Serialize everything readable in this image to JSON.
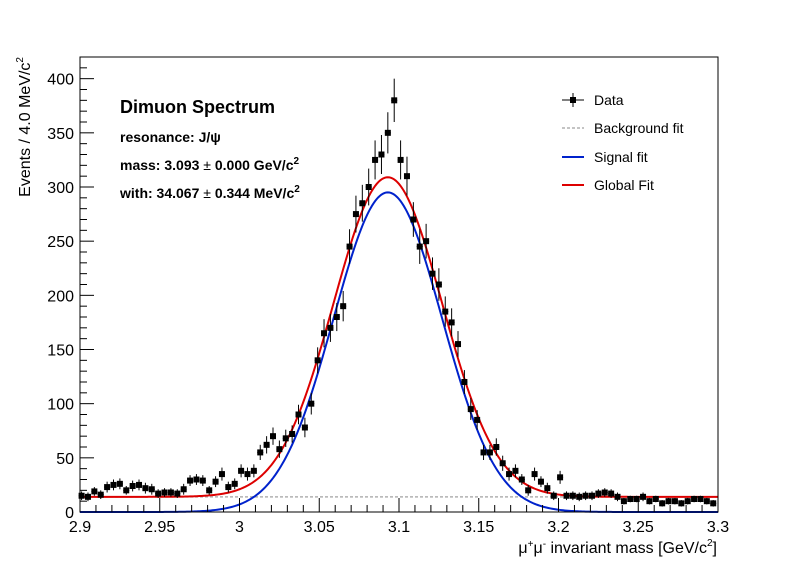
{
  "chart_data": {
    "type": "scatter",
    "title": "Dimuon Spectrum",
    "annotations": {
      "resonance_label": "resonance: J/ψ",
      "mass_prefix": "mass: 3.093 ",
      "mass_pm": "±",
      "mass_rest": " 0.000 GeV/c",
      "with_prefix": "with: 34.067 ",
      "with_pm": "±",
      "with_rest": " 0.344 MeV/c",
      "sup2": "2"
    },
    "xlabel": {
      "mu1": "μ",
      "plus": "+",
      "mu2": "μ",
      "minus": "-",
      "rest": " invariant mass [GeV/c",
      "sup": "2",
      "close": "]"
    },
    "ylabel": {
      "main": "Events / 4.0 MeV/c",
      "sup": "2"
    },
    "xlim": [
      2.9,
      3.3
    ],
    "ylim": [
      0,
      420
    ],
    "x_ticks": [
      {
        "v": 2.9,
        "label": "2.9"
      },
      {
        "v": 2.95,
        "label": "2.95"
      },
      {
        "v": 3.0,
        "label": "3"
      },
      {
        "v": 3.05,
        "label": "3.05"
      },
      {
        "v": 3.1,
        "label": "3.1"
      },
      {
        "v": 3.15,
        "label": "3.15"
      },
      {
        "v": 3.2,
        "label": "3.2"
      },
      {
        "v": 3.25,
        "label": "3.25"
      },
      {
        "v": 3.3,
        "label": "3.3"
      }
    ],
    "y_ticks": [
      {
        "v": 0,
        "label": "0"
      },
      {
        "v": 50,
        "label": "50"
      },
      {
        "v": 100,
        "label": "100"
      },
      {
        "v": 150,
        "label": "150"
      },
      {
        "v": 200,
        "label": "200"
      },
      {
        "v": 250,
        "label": "250"
      },
      {
        "v": 300,
        "label": "300"
      },
      {
        "v": 350,
        "label": "350"
      },
      {
        "v": 400,
        "label": "400"
      }
    ],
    "legend": {
      "position": "top-right",
      "entries": [
        {
          "label": "Data",
          "style": "marker",
          "color": "#000000"
        },
        {
          "label": "Background fit",
          "style": "dashed",
          "color": "#b0b0b0"
        },
        {
          "label": "Signal fit",
          "style": "line",
          "color": "#0022cc"
        },
        {
          "label": "Global Fit",
          "style": "line",
          "color": "#dd0000"
        }
      ]
    },
    "fit": {
      "mean": 3.093,
      "sigma": 0.034,
      "signal_amplitude": 295,
      "background_level": 14
    },
    "series": [
      {
        "name": "Data",
        "x": [
          2.901,
          2.905,
          2.909,
          2.913,
          2.917,
          2.921,
          2.925,
          2.929,
          2.933,
          2.937,
          2.941,
          2.945,
          2.949,
          2.953,
          2.957,
          2.961,
          2.965,
          2.969,
          2.973,
          2.977,
          2.981,
          2.985,
          2.989,
          2.993,
          2.997,
          3.001,
          3.005,
          3.009,
          3.013,
          3.017,
          3.021,
          3.025,
          3.029,
          3.033,
          3.037,
          3.041,
          3.045,
          3.049,
          3.053,
          3.057,
          3.061,
          3.065,
          3.069,
          3.073,
          3.077,
          3.081,
          3.085,
          3.089,
          3.093,
          3.097,
          3.101,
          3.105,
          3.109,
          3.113,
          3.117,
          3.121,
          3.125,
          3.129,
          3.133,
          3.137,
          3.141,
          3.145,
          3.149,
          3.153,
          3.157,
          3.161,
          3.165,
          3.169,
          3.173,
          3.177,
          3.181,
          3.185,
          3.189,
          3.193,
          3.197,
          3.201,
          3.205,
          3.209,
          3.213,
          3.217,
          3.221,
          3.225,
          3.229,
          3.233,
          3.237,
          3.241,
          3.245,
          3.249,
          3.253,
          3.257,
          3.261,
          3.265,
          3.269,
          3.273,
          3.277,
          3.281,
          3.285,
          3.289,
          3.293,
          3.297
        ],
        "y": [
          15,
          14,
          19,
          16,
          23,
          25,
          26,
          20,
          24,
          25,
          22,
          21,
          17,
          18,
          18,
          17,
          21,
          29,
          30,
          29,
          20,
          28,
          35,
          23,
          26,
          38,
          35,
          38,
          55,
          62,
          70,
          58,
          68,
          72,
          90,
          78,
          100,
          140,
          165,
          170,
          180,
          190,
          245,
          275,
          285,
          300,
          325,
          330,
          350,
          380,
          325,
          310,
          270,
          245,
          250,
          220,
          210,
          185,
          175,
          155,
          120,
          95,
          85,
          55,
          55,
          60,
          45,
          35,
          38,
          30,
          20,
          35,
          28,
          22,
          15,
          32,
          15,
          15,
          14,
          15,
          15,
          17,
          18,
          17,
          14,
          10,
          12,
          12,
          14,
          10,
          12,
          8,
          10,
          10,
          8,
          10,
          12,
          12,
          10,
          8
        ],
        "err": [
          4,
          4,
          4,
          4,
          5,
          5,
          5,
          4,
          5,
          5,
          5,
          5,
          4,
          4,
          4,
          4,
          5,
          5,
          5,
          5,
          4,
          5,
          6,
          5,
          5,
          6,
          6,
          6,
          7,
          8,
          8,
          8,
          8,
          8,
          9,
          9,
          10,
          12,
          13,
          13,
          13,
          14,
          16,
          17,
          17,
          17,
          18,
          18,
          19,
          20,
          18,
          18,
          16,
          16,
          16,
          15,
          15,
          14,
          13,
          12,
          11,
          10,
          9,
          7,
          7,
          8,
          7,
          6,
          6,
          5,
          5,
          6,
          5,
          5,
          4,
          6,
          4,
          4,
          4,
          4,
          4,
          4,
          4,
          4,
          4,
          3,
          3,
          3,
          4,
          3,
          3,
          3,
          3,
          3,
          3,
          3,
          3,
          3,
          3,
          3
        ]
      }
    ]
  }
}
